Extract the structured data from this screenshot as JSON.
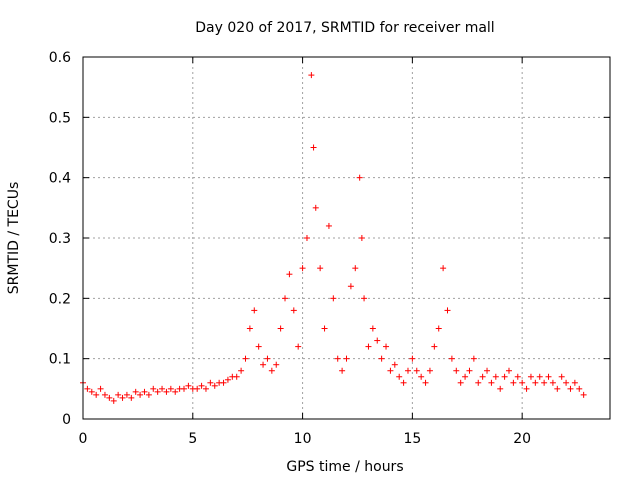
{
  "chart_data": {
    "type": "scatter",
    "title": "Day 020 of 2017, SRMTID for receiver mall",
    "xlabel": "GPS time / hours",
    "ylabel": "SRMTID / TECUs",
    "xlim": [
      0,
      24
    ],
    "ylim": [
      0,
      0.6
    ],
    "xticks": [
      0,
      5,
      10,
      15,
      20
    ],
    "yticks": [
      0,
      0.1,
      0.2,
      0.3,
      0.4,
      0.5,
      0.6
    ],
    "xtick_labels": [
      "0",
      "5",
      "10",
      "15",
      "20"
    ],
    "ytick_labels": [
      "0",
      "0.1",
      "0.2",
      "0.3",
      "0.4",
      "0.5",
      "0.6"
    ],
    "grid": true,
    "marker": "+",
    "color": "#ff0000",
    "series": [
      {
        "name": "SRMTID",
        "x": [
          0.0,
          0.2,
          0.4,
          0.6,
          0.8,
          1.0,
          1.2,
          1.4,
          1.6,
          1.8,
          2.0,
          2.2,
          2.4,
          2.6,
          2.8,
          3.0,
          3.2,
          3.4,
          3.6,
          3.8,
          4.0,
          4.2,
          4.4,
          4.6,
          4.8,
          5.0,
          5.2,
          5.4,
          5.6,
          5.8,
          6.0,
          6.2,
          6.4,
          6.6,
          6.8,
          7.0,
          7.2,
          7.4,
          7.6,
          7.8,
          8.0,
          8.2,
          8.4,
          8.6,
          8.8,
          9.0,
          9.2,
          9.4,
          9.6,
          9.8,
          10.0,
          10.2,
          10.4,
          10.5,
          10.6,
          10.8,
          11.0,
          11.2,
          11.4,
          11.6,
          11.8,
          12.0,
          12.2,
          12.4,
          12.6,
          12.7,
          12.8,
          13.0,
          13.2,
          13.4,
          13.6,
          13.8,
          14.0,
          14.2,
          14.4,
          14.6,
          14.8,
          15.0,
          15.2,
          15.4,
          15.6,
          15.8,
          16.0,
          16.2,
          16.4,
          16.6,
          16.8,
          17.0,
          17.2,
          17.4,
          17.6,
          17.8,
          18.0,
          18.2,
          18.4,
          18.6,
          18.8,
          19.0,
          19.2,
          19.4,
          19.6,
          19.8,
          20.0,
          20.2,
          20.4,
          20.6,
          20.8,
          21.0,
          21.2,
          21.4,
          21.6,
          21.8,
          22.0,
          22.2,
          22.4,
          22.6,
          22.8
        ],
        "y": [
          0.06,
          0.05,
          0.045,
          0.04,
          0.05,
          0.04,
          0.035,
          0.03,
          0.04,
          0.035,
          0.04,
          0.035,
          0.045,
          0.04,
          0.045,
          0.04,
          0.05,
          0.045,
          0.05,
          0.045,
          0.05,
          0.045,
          0.05,
          0.05,
          0.055,
          0.05,
          0.05,
          0.055,
          0.05,
          0.06,
          0.055,
          0.06,
          0.06,
          0.065,
          0.07,
          0.07,
          0.08,
          0.1,
          0.15,
          0.18,
          0.12,
          0.09,
          0.1,
          0.08,
          0.09,
          0.15,
          0.2,
          0.24,
          0.18,
          0.12,
          0.25,
          0.3,
          0.57,
          0.45,
          0.35,
          0.25,
          0.15,
          0.32,
          0.2,
          0.1,
          0.08,
          0.1,
          0.22,
          0.25,
          0.4,
          0.3,
          0.2,
          0.12,
          0.15,
          0.13,
          0.1,
          0.12,
          0.08,
          0.09,
          0.07,
          0.06,
          0.08,
          0.1,
          0.08,
          0.07,
          0.06,
          0.08,
          0.12,
          0.15,
          0.25,
          0.18,
          0.1,
          0.08,
          0.06,
          0.07,
          0.08,
          0.1,
          0.06,
          0.07,
          0.08,
          0.06,
          0.07,
          0.05,
          0.07,
          0.08,
          0.06,
          0.07,
          0.06,
          0.05,
          0.07,
          0.06,
          0.07,
          0.06,
          0.07,
          0.06,
          0.05,
          0.07,
          0.06,
          0.05,
          0.06,
          0.05,
          0.04
        ]
      }
    ]
  }
}
